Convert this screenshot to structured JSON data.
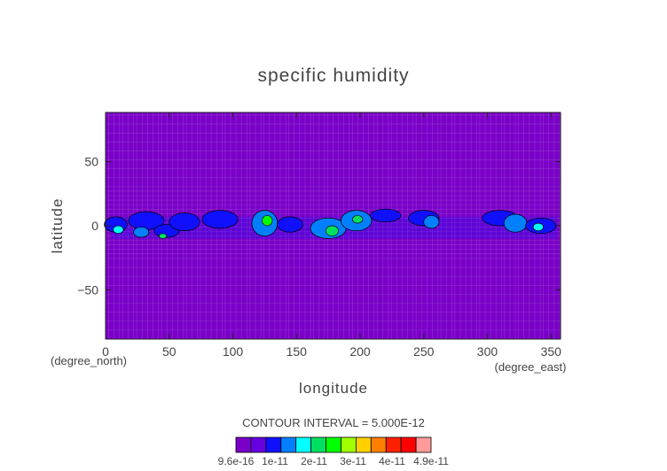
{
  "chart_data": {
    "type": "heatmap",
    "title": "specific humidity",
    "xlabel": "longitude",
    "ylabel": "latitude",
    "x_units": "(degree_east)",
    "y_units": "(degree_north)",
    "xlim": [
      0,
      357.5
    ],
    "ylim": [
      -88.5,
      88.5
    ],
    "x_ticks": [
      0,
      50,
      100,
      150,
      200,
      250,
      300,
      350
    ],
    "y_ticks": [
      50,
      0,
      -50
    ],
    "grid": true,
    "background_color": "#7a00c8",
    "contour_interval_text": "CONTOUR INTERVAL = 5.000E-12",
    "colorbar": {
      "colors": [
        "#7a00c8",
        "#6600e0",
        "#1010ff",
        "#0080ff",
        "#00ffff",
        "#00e060",
        "#00ff00",
        "#a0ff00",
        "#ffd000",
        "#ff8000",
        "#ff2000",
        "#ff0000",
        "#ff9a9a"
      ],
      "labels": [
        "9.6e-16",
        "1e-11",
        "2e-11",
        "3e-11",
        "4e-11",
        "4.9e-11"
      ]
    },
    "moisture_blobs": [
      {
        "lon": 8,
        "lat": 1,
        "rlon": 9,
        "rlat": 6,
        "level": 2
      },
      {
        "lon": 10,
        "lat": -3,
        "rlon": 4,
        "rlat": 3,
        "level": 4
      },
      {
        "lon": 32,
        "lat": 4,
        "rlon": 14,
        "rlat": 7,
        "level": 2
      },
      {
        "lon": 28,
        "lat": -5,
        "rlon": 6,
        "rlat": 4,
        "level": 3
      },
      {
        "lon": 48,
        "lat": -4,
        "rlon": 10,
        "rlat": 5,
        "level": 2
      },
      {
        "lon": 45,
        "lat": -8,
        "rlon": 3,
        "rlat": 2,
        "level": 5
      },
      {
        "lon": 62,
        "lat": 3,
        "rlon": 12,
        "rlat": 7,
        "level": 2
      },
      {
        "lon": 90,
        "lat": 5,
        "rlon": 14,
        "rlat": 7,
        "level": 2
      },
      {
        "lon": 125,
        "lat": 2,
        "rlon": 10,
        "rlat": 10,
        "level": 3
      },
      {
        "lon": 127,
        "lat": 4,
        "rlon": 4,
        "rlat": 4,
        "level": 6
      },
      {
        "lon": 145,
        "lat": 1,
        "rlon": 10,
        "rlat": 6,
        "level": 2
      },
      {
        "lon": 175,
        "lat": -2,
        "rlon": 14,
        "rlat": 8,
        "level": 3
      },
      {
        "lon": 178,
        "lat": -4,
        "rlon": 5,
        "rlat": 4,
        "level": 5
      },
      {
        "lon": 197,
        "lat": 4,
        "rlon": 12,
        "rlat": 8,
        "level": 3
      },
      {
        "lon": 198,
        "lat": 5,
        "rlon": 4,
        "rlat": 3,
        "level": 5
      },
      {
        "lon": 220,
        "lat": 8,
        "rlon": 12,
        "rlat": 5,
        "level": 2
      },
      {
        "lon": 250,
        "lat": 6,
        "rlon": 12,
        "rlat": 6,
        "level": 2
      },
      {
        "lon": 256,
        "lat": 3,
        "rlon": 6,
        "rlat": 5,
        "level": 3
      },
      {
        "lon": 310,
        "lat": 6,
        "rlon": 14,
        "rlat": 6,
        "level": 2
      },
      {
        "lon": 322,
        "lat": 2,
        "rlon": 9,
        "rlat": 7,
        "level": 3
      },
      {
        "lon": 342,
        "lat": 0,
        "rlon": 12,
        "rlat": 6,
        "level": 2
      },
      {
        "lon": 340,
        "lat": -1,
        "rlon": 4,
        "rlat": 3,
        "level": 4
      }
    ]
  }
}
